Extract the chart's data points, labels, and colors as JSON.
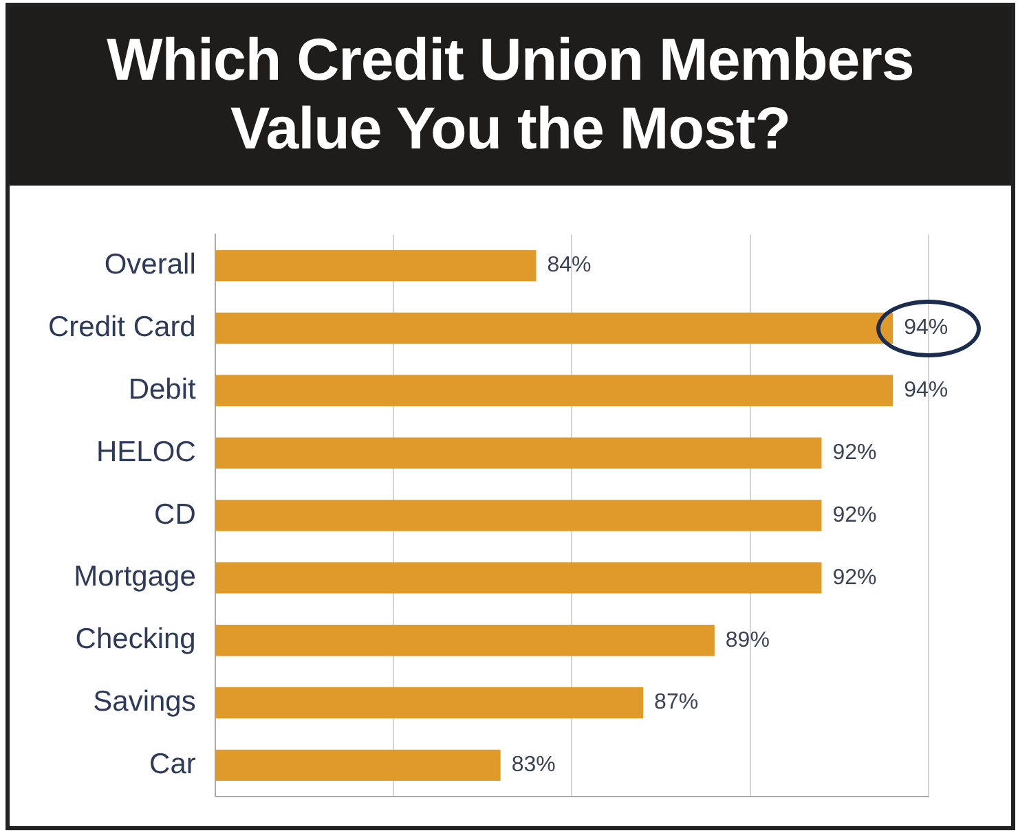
{
  "chart_data": {
    "type": "bar",
    "orientation": "horizontal",
    "title": "Which Credit Union Members Value You the Most?",
    "categories": [
      "Overall",
      "Credit Card",
      "Debit",
      "HELOC",
      "CD",
      "Mortgage",
      "Checking",
      "Savings",
      "Car"
    ],
    "values": [
      84,
      94,
      94,
      92,
      92,
      92,
      89,
      87,
      83
    ],
    "value_labels": [
      "84%",
      "94%",
      "94%",
      "92%",
      "92%",
      "92%",
      "89%",
      "87%",
      "83%"
    ],
    "color": "#e09a2a",
    "xlim": [
      75,
      95
    ],
    "xticks": [
      {
        "value": 75,
        "label": null
      },
      {
        "value": 80,
        "label": null
      },
      {
        "value": 85,
        "label": null
      },
      {
        "value": 90,
        "label": null
      },
      {
        "value": 95,
        "label": null
      }
    ],
    "grid": "x",
    "tick_labels": "y",
    "legend": false
  }
}
